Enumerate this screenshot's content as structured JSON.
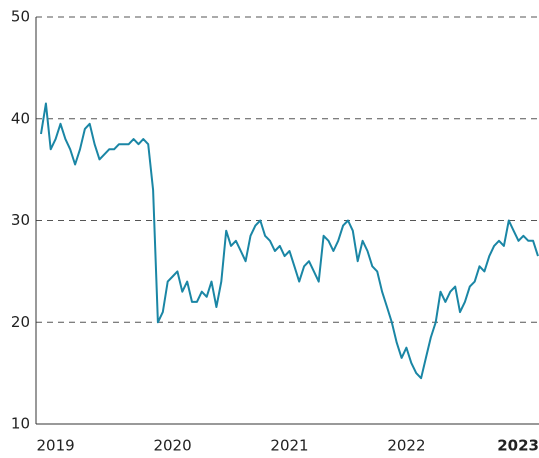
{
  "chart_data": {
    "type": "line",
    "categories": [
      null,
      null,
      null,
      "2019",
      null,
      null,
      null,
      null,
      null,
      null,
      null,
      null,
      null,
      null,
      null,
      null,
      null,
      null,
      null,
      null,
      null,
      null,
      null,
      null,
      null,
      null,
      null,
      "2020",
      null,
      null,
      null,
      null,
      null,
      null,
      null,
      null,
      null,
      null,
      null,
      null,
      null,
      null,
      null,
      null,
      null,
      null,
      null,
      null,
      null,
      null,
      null,
      "2021",
      null,
      null,
      null,
      null,
      null,
      null,
      null,
      null,
      null,
      null,
      null,
      null,
      null,
      null,
      null,
      null,
      null,
      null,
      null,
      null,
      null,
      null,
      null,
      "2022",
      null,
      null,
      null,
      null,
      null,
      null,
      null,
      null,
      null,
      null,
      null,
      null,
      null,
      null,
      null,
      null,
      null,
      null,
      null,
      null,
      null,
      null,
      null,
      "2023",
      null,
      null,
      null
    ],
    "series": [
      {
        "color": "#1a86a5",
        "values": [
          38.5,
          41.5,
          37,
          38,
          39.5,
          38,
          37,
          35.5,
          37,
          39,
          39.5,
          37.5,
          36,
          36.5,
          37,
          37,
          37.5,
          37.5,
          37.5,
          38,
          37.5,
          38,
          37.5,
          33,
          20,
          21,
          24,
          24.5,
          25,
          23,
          24,
          22,
          22,
          23,
          22.5,
          24,
          21.5,
          24,
          29,
          27.5,
          28,
          27,
          26,
          28.5,
          29.5,
          30,
          28.5,
          28,
          27,
          27.5,
          26.5,
          27,
          25.5,
          24,
          25.5,
          26,
          25,
          24,
          28.5,
          28,
          27,
          28,
          29.5,
          30,
          29,
          26,
          28,
          27,
          25.5,
          25,
          23,
          21.5,
          20,
          18,
          16.5,
          17.5,
          16,
          15,
          14.5,
          16.5,
          18.5,
          20,
          23,
          22,
          23,
          23.5,
          21,
          22,
          23.5,
          24,
          25.5,
          25,
          26.5,
          27.5,
          28,
          27.5,
          30,
          29,
          28,
          28.5,
          28,
          28,
          26.5
        ]
      }
    ],
    "ylim": [
      10,
      50
    ],
    "yticks": [
      10,
      20,
      30,
      40,
      50
    ],
    "grid": true
  }
}
